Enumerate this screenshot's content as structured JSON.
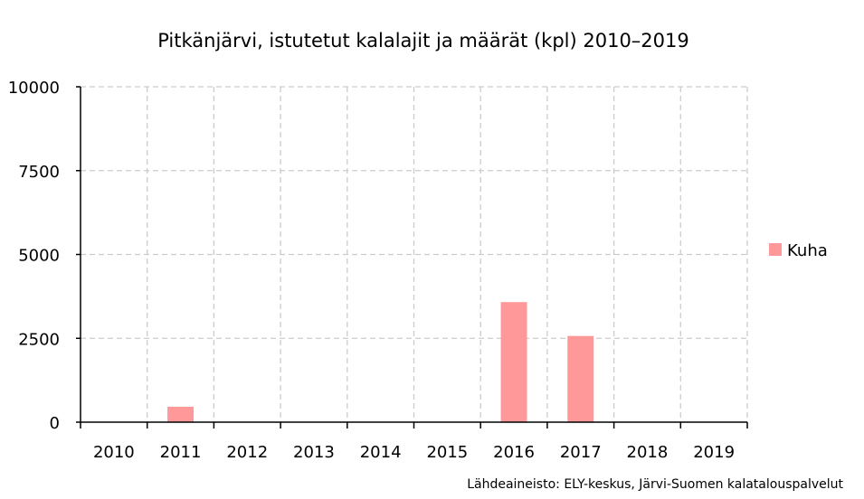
{
  "chart_data": {
    "type": "bar",
    "title": "Pitkänjärvi, istutetut kalalajit ja määrät (kpl) 2010–2019",
    "xlabel": "",
    "ylabel": "",
    "categories": [
      "2010",
      "2011",
      "2012",
      "2013",
      "2014",
      "2015",
      "2016",
      "2017",
      "2018",
      "2019"
    ],
    "series": [
      {
        "name": "Kuha",
        "values": [
          0,
          460,
          0,
          0,
          0,
          0,
          3580,
          2570,
          0,
          0
        ],
        "color": "#ff9999"
      }
    ],
    "ylim": [
      0,
      10000
    ],
    "yticks": [
      "0",
      "2500",
      "5000",
      "7500",
      "10000"
    ],
    "grid": true,
    "legend_position": "right"
  },
  "source_note": "Lähdeaineisto: ELY-keskus, Järvi-Suomen kalatalouspalvelut"
}
